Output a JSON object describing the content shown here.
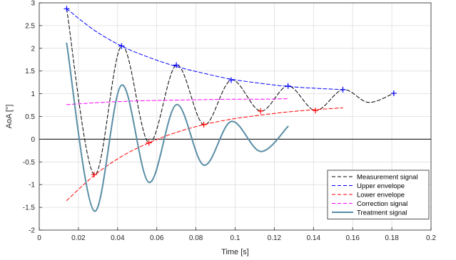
{
  "chart_data": {
    "type": "line",
    "xlabel": "Time [s]",
    "ylabel": "AoA [°]",
    "xlim": [
      0,
      0.2
    ],
    "ylim": [
      -2,
      3
    ],
    "xticks": [
      0,
      0.02,
      0.04,
      0.06,
      0.08,
      0.1,
      0.12,
      0.14,
      0.16,
      0.18,
      0.2
    ],
    "xtick_labels": [
      "0",
      "0.02",
      "0.04",
      "0.06",
      "0.08",
      "0.1",
      "0.12",
      "0.14",
      "0.16",
      "0.18",
      "0.2"
    ],
    "yticks": [
      -2,
      -1.5,
      -1,
      -0.5,
      0,
      0.5,
      1,
      1.5,
      2,
      2.5,
      3
    ],
    "ytick_labels": [
      "-2",
      "-1.5",
      "-1",
      "-0.5",
      "0",
      "0.5",
      "1",
      "1.5",
      "2",
      "2.5",
      "3"
    ],
    "grid": true,
    "zero_line": true,
    "legend_position": "bottom-right",
    "series": [
      {
        "name": "Measurement signal",
        "color": "#000000",
        "style": "dashed",
        "x": [
          0.014,
          0.028,
          0.042,
          0.056,
          0.07,
          0.084,
          0.098,
          0.113,
          0.127,
          0.141,
          0.155,
          0.168,
          0.181
        ],
        "y": [
          2.87,
          -0.78,
          2.05,
          -0.08,
          1.63,
          0.32,
          1.3,
          0.62,
          1.17,
          0.63,
          1.09,
          0.81,
          1.01
        ]
      },
      {
        "name": "Upper envelope",
        "color": "#0000ff",
        "style": "dashed",
        "x": [
          0.014,
          0.028,
          0.042,
          0.056,
          0.07,
          0.084,
          0.098,
          0.113,
          0.127,
          0.141,
          0.155
        ],
        "y": [
          2.87,
          2.4,
          2.05,
          1.8,
          1.6,
          1.45,
          1.32,
          1.23,
          1.16,
          1.12,
          1.09
        ]
      },
      {
        "name": "Lower envelope",
        "color": "#ff0000",
        "style": "dashed",
        "x": [
          0.014,
          0.028,
          0.042,
          0.056,
          0.07,
          0.084,
          0.098,
          0.113,
          0.127,
          0.141,
          0.155
        ],
        "y": [
          -1.35,
          -0.8,
          -0.38,
          -0.08,
          0.15,
          0.32,
          0.44,
          0.53,
          0.6,
          0.65,
          0.69
        ]
      },
      {
        "name": "Correction signal",
        "color": "#ff00ff",
        "style": "dashed",
        "x": [
          0.014,
          0.028,
          0.042,
          0.056,
          0.07,
          0.084,
          0.098,
          0.113,
          0.127
        ],
        "y": [
          0.76,
          0.8,
          0.83,
          0.85,
          0.86,
          0.87,
          0.88,
          0.88,
          0.89
        ]
      },
      {
        "name": "Treatment signal",
        "color": "#5a8ea6",
        "style": "solid",
        "x": [
          0.014,
          0.028,
          0.042,
          0.056,
          0.07,
          0.084,
          0.098,
          0.113,
          0.127
        ],
        "y": [
          2.11,
          -1.58,
          1.19,
          -0.95,
          0.76,
          -0.57,
          0.39,
          -0.27,
          0.28
        ]
      }
    ],
    "markers": [
      {
        "series": "Upper envelope",
        "color": "#0000ff",
        "x": [
          0.014,
          0.042,
          0.07,
          0.098,
          0.127,
          0.155,
          0.181
        ],
        "y": [
          2.87,
          2.05,
          1.63,
          1.3,
          1.17,
          1.09,
          1.01
        ]
      },
      {
        "series": "Lower envelope",
        "color": "#ff0000",
        "x": [
          0.028,
          0.056,
          0.084,
          0.113,
          0.141
        ],
        "y": [
          -0.78,
          -0.08,
          0.32,
          0.62,
          0.63
        ]
      }
    ]
  }
}
